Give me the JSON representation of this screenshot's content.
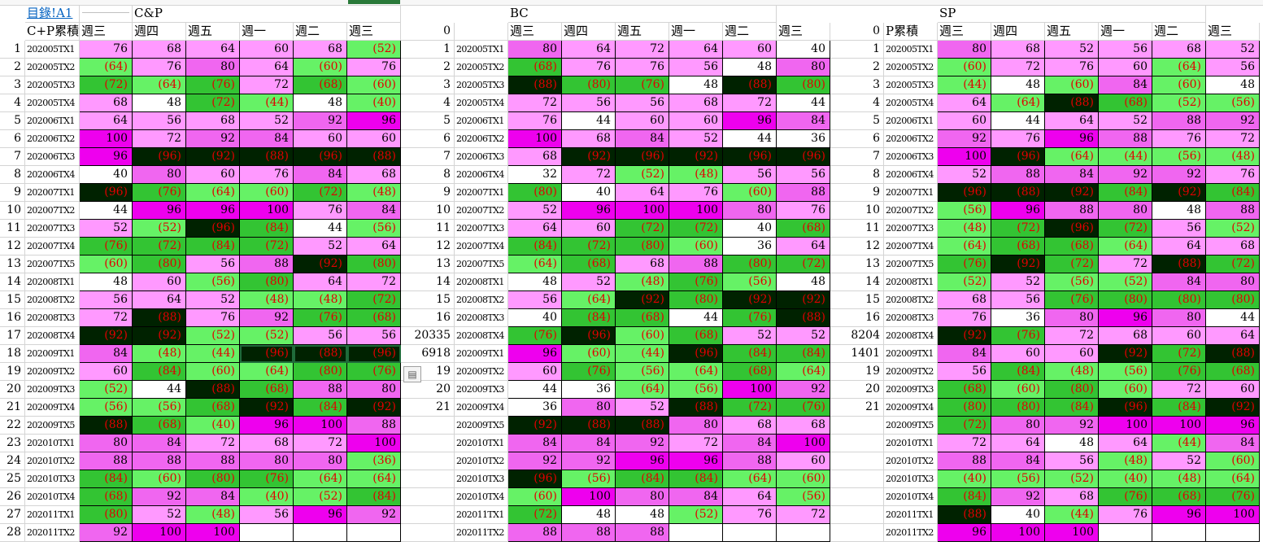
{
  "link_cell": "目錄!A1",
  "sections": [
    "C&P",
    "BC",
    "SP"
  ],
  "header_row": {
    "cp_label": "C+P累積",
    "bc_index": "0",
    "sp_index": "0",
    "sp_label": "P累積",
    "days_cp": [
      "週三",
      "週四",
      "週五",
      "週一",
      "週二",
      "週三"
    ],
    "days_bc": [
      "週三",
      "週四",
      "週五",
      "週一",
      "週二",
      "週三"
    ],
    "days_sp": [
      "週三",
      "週四",
      "週五",
      "週一",
      "週二",
      "週三"
    ]
  },
  "colors": {
    "green_light": "#66f266",
    "green_mid": "#33c433",
    "green_dark": "#002200",
    "pink_light": "#ff99ff",
    "pink_mid": "#f066f0",
    "magenta": "#ee00ee",
    "white": "#ffffff",
    "negative_text": "#e00000"
  },
  "rows": [
    {
      "n": "1",
      "cpl": "202005TX1",
      "cp": [
        "76",
        "68",
        "64",
        "60",
        "68",
        "(52)"
      ],
      "bi": "1",
      "bl": "202005TX1",
      "bc": [
        "80",
        "64",
        "72",
        "64",
        "60",
        "40"
      ],
      "si": "1",
      "sl": "202005TX1",
      "sp": [
        "80",
        "68",
        "52",
        "56",
        "68",
        "52"
      ]
    },
    {
      "n": "2",
      "cpl": "202005TX2",
      "cp": [
        "(64)",
        "76",
        "80",
        "64",
        "(60)",
        "76"
      ],
      "bi": "2",
      "bl": "202005TX2",
      "bc": [
        "(68)",
        "76",
        "76",
        "56",
        "48",
        "80"
      ],
      "si": "2",
      "sl": "202005TX2",
      "sp": [
        "(60)",
        "72",
        "76",
        "60",
        "(64)",
        "56"
      ]
    },
    {
      "n": "3",
      "cpl": "202005TX3",
      "cp": [
        "(72)",
        "(64)",
        "(76)",
        "72",
        "(68)",
        "(60)"
      ],
      "bi": "3",
      "bl": "202005TX3",
      "bc": [
        "(88)",
        "(80)",
        "(76)",
        "48",
        "(88)",
        "(80)"
      ],
      "si": "3",
      "sl": "202005TX3",
      "sp": [
        "(44)",
        "48",
        "(60)",
        "84",
        "(60)",
        "48"
      ]
    },
    {
      "n": "4",
      "cpl": "202005TX4",
      "cp": [
        "68",
        "48",
        "(72)",
        "(44)",
        "48",
        "(40)"
      ],
      "bi": "4",
      "bl": "202005TX4",
      "bc": [
        "72",
        "56",
        "56",
        "68",
        "72",
        "44"
      ],
      "si": "4",
      "sl": "202005TX4",
      "sp": [
        "64",
        "(64)",
        "(88)",
        "(68)",
        "(52)",
        "(56)"
      ]
    },
    {
      "n": "5",
      "cpl": "202006TX1",
      "cp": [
        "64",
        "56",
        "68",
        "52",
        "92",
        "96"
      ],
      "bi": "5",
      "bl": "202006TX1",
      "bc": [
        "76",
        "44",
        "60",
        "60",
        "96",
        "84"
      ],
      "si": "5",
      "sl": "202006TX1",
      "sp": [
        "60",
        "44",
        "64",
        "52",
        "88",
        "92"
      ]
    },
    {
      "n": "6",
      "cpl": "202006TX2",
      "cp": [
        "100",
        "72",
        "92",
        "84",
        "60",
        "60"
      ],
      "bi": "6",
      "bl": "202006TX2",
      "bc": [
        "100",
        "68",
        "84",
        "52",
        "44",
        "36"
      ],
      "si": "6",
      "sl": "202006TX2",
      "sp": [
        "92",
        "76",
        "96",
        "88",
        "76",
        "72"
      ]
    },
    {
      "n": "7",
      "cpl": "202006TX3",
      "cp": [
        "96",
        "(96)",
        "(92)",
        "(88)",
        "(96)",
        "(88)"
      ],
      "bi": "7",
      "bl": "202006TX3",
      "bc": [
        "68",
        "(92)",
        "(96)",
        "(92)",
        "(96)",
        "(96)"
      ],
      "si": "7",
      "sl": "202006TX3",
      "sp": [
        "100",
        "(96)",
        "(64)",
        "(44)",
        "(56)",
        "(48)"
      ]
    },
    {
      "n": "8",
      "cpl": "202006TX4",
      "cp": [
        "40",
        "80",
        "60",
        "76",
        "84",
        "68"
      ],
      "bi": "8",
      "bl": "202006TX4",
      "bc": [
        "32",
        "72",
        "(52)",
        "(48)",
        "56",
        "56"
      ],
      "si": "8",
      "sl": "202006TX4",
      "sp": [
        "52",
        "88",
        "84",
        "92",
        "92",
        "76"
      ]
    },
    {
      "n": "9",
      "cpl": "202007TX1",
      "cp": [
        "(96)",
        "(76)",
        "(64)",
        "(60)",
        "(72)",
        "(48)"
      ],
      "bi": "9",
      "bl": "202007TX1",
      "bc": [
        "(80)",
        "40",
        "64",
        "76",
        "(60)",
        "88"
      ],
      "si": "9",
      "sl": "202007TX1",
      "sp": [
        "(96)",
        "(88)",
        "(92)",
        "(84)",
        "(92)",
        "(84)"
      ]
    },
    {
      "n": "10",
      "cpl": "202007TX2",
      "cp": [
        "44",
        "96",
        "96",
        "100",
        "76",
        "84"
      ],
      "bi": "10",
      "bl": "202007TX2",
      "bc": [
        "52",
        "96",
        "100",
        "100",
        "80",
        "76"
      ],
      "si": "10",
      "sl": "202007TX2",
      "sp": [
        "(56)",
        "96",
        "88",
        "80",
        "48",
        "88"
      ]
    },
    {
      "n": "11",
      "cpl": "202007TX3",
      "cp": [
        "52",
        "(52)",
        "(96)",
        "(84)",
        "44",
        "(56)"
      ],
      "bi": "11",
      "bl": "202007TX3",
      "bc": [
        "64",
        "60",
        "(72)",
        "(72)",
        "40",
        "(68)"
      ],
      "si": "11",
      "sl": "202007TX3",
      "sp": [
        "(48)",
        "(72)",
        "(96)",
        "(72)",
        "56",
        "(52)"
      ]
    },
    {
      "n": "12",
      "cpl": "202007TX4",
      "cp": [
        "(76)",
        "(72)",
        "(84)",
        "(72)",
        "52",
        "64"
      ],
      "bi": "12",
      "bl": "202007TX4",
      "bc": [
        "(84)",
        "(72)",
        "(80)",
        "(60)",
        "36",
        "64"
      ],
      "si": "12",
      "sl": "202007TX4",
      "sp": [
        "(64)",
        "(68)",
        "(68)",
        "(64)",
        "64",
        "68"
      ]
    },
    {
      "n": "13",
      "cpl": "202007TX5",
      "cp": [
        "(60)",
        "(80)",
        "56",
        "88",
        "(92)",
        "(80)"
      ],
      "bi": "13",
      "bl": "202007TX5",
      "bc": [
        "(64)",
        "(68)",
        "68",
        "88",
        "(80)",
        "(72)"
      ],
      "si": "13",
      "sl": "202007TX5",
      "sp": [
        "(76)",
        "(92)",
        "(72)",
        "72",
        "(88)",
        "(72)"
      ]
    },
    {
      "n": "14",
      "cpl": "202008TX1",
      "cp": [
        "48",
        "60",
        "(56)",
        "(80)",
        "64",
        "72"
      ],
      "bi": "14",
      "bl": "202008TX1",
      "bc": [
        "48",
        "52",
        "(48)",
        "(76)",
        "(56)",
        "48"
      ],
      "si": "14",
      "sl": "202008TX1",
      "sp": [
        "(52)",
        "52",
        "(56)",
        "(52)",
        "84",
        "80"
      ]
    },
    {
      "n": "15",
      "cpl": "202008TX2",
      "cp": [
        "56",
        "64",
        "52",
        "(48)",
        "(48)",
        "(72)"
      ],
      "bi": "15",
      "bl": "202008TX2",
      "bc": [
        "56",
        "(64)",
        "(92)",
        "(80)",
        "(92)",
        "(92)"
      ],
      "si": "15",
      "sl": "202008TX2",
      "sp": [
        "68",
        "56",
        "(76)",
        "(80)",
        "(80)",
        "(80)"
      ]
    },
    {
      "n": "16",
      "cpl": "202008TX3",
      "cp": [
        "72",
        "(88)",
        "76",
        "92",
        "(76)",
        "(68)"
      ],
      "bi": "16",
      "bl": "202008TX3",
      "bc": [
        "40",
        "(84)",
        "(68)",
        "44",
        "(76)",
        "(88)"
      ],
      "si": "16",
      "sl": "202008TX3",
      "sp": [
        "76",
        "36",
        "80",
        "96",
        "80",
        "44"
      ]
    },
    {
      "n": "17",
      "cpl": "202008TX4",
      "cp": [
        "(92)",
        "(92)",
        "(52)",
        "(52)",
        "56",
        "56"
      ],
      "bi": "20335",
      "bl": "202008TX4",
      "bc": [
        "(76)",
        "(96)",
        "(60)",
        "(68)",
        "52",
        "52"
      ],
      "si": "8204",
      "sl": "202008TX4",
      "sp": [
        "(92)",
        "(76)",
        "72",
        "68",
        "60",
        "64"
      ]
    },
    {
      "n": "18",
      "cpl": "202009TX1",
      "cp": [
        "84",
        "(48)",
        "(44)",
        "(96)",
        "(88)",
        "(96)"
      ],
      "bi": "6918",
      "bl": "202009TX1",
      "bc": [
        "96",
        "(60)",
        "(44)",
        "(96)",
        "(84)",
        "(84)"
      ],
      "si": "1401",
      "sl": "202009TX1",
      "sp": [
        "84",
        "60",
        "60",
        "(92)",
        "(72)",
        "(88)"
      ]
    },
    {
      "n": "19",
      "cpl": "202009TX2",
      "cp": [
        "60",
        "(84)",
        "(60)",
        "(64)",
        "(80)",
        "(76)"
      ],
      "bi": "19",
      "bl": "202009TX2",
      "bc": [
        "60",
        "(76)",
        "(56)",
        "(64)",
        "(68)",
        "(64)"
      ],
      "si": "19",
      "sl": "202009TX2",
      "sp": [
        "56",
        "(84)",
        "(48)",
        "(56)",
        "(76)",
        "(68)"
      ]
    },
    {
      "n": "20",
      "cpl": "202009TX3",
      "cp": [
        "(52)",
        "44",
        "(88)",
        "(68)",
        "88",
        "80"
      ],
      "bi": "20",
      "bl": "202009TX3",
      "bc": [
        "44",
        "36",
        "(64)",
        "(56)",
        "100",
        "92"
      ],
      "si": "20",
      "sl": "202009TX3",
      "sp": [
        "(68)",
        "(60)",
        "(80)",
        "(60)",
        "72",
        "60"
      ]
    },
    {
      "n": "21",
      "cpl": "202009TX4",
      "cp": [
        "(56)",
        "(56)",
        "(68)",
        "(92)",
        "(84)",
        "(92)"
      ],
      "bi": "21",
      "bl": "202009TX4",
      "bc": [
        "36",
        "80",
        "52",
        "(88)",
        "(72)",
        "(76)"
      ],
      "si": "21",
      "sl": "202009TX4",
      "sp": [
        "(80)",
        "(80)",
        "(84)",
        "(96)",
        "(84)",
        "(92)"
      ]
    },
    {
      "n": "22",
      "cpl": "202009TX5",
      "cp": [
        "(88)",
        "(68)",
        "(40)",
        "96",
        "100",
        "88"
      ],
      "bi": "",
      "bl": "202009TX5",
      "bc": [
        "(92)",
        "(88)",
        "(88)",
        "80",
        "68",
        "68"
      ],
      "si": "",
      "sl": "202009TX5",
      "sp": [
        "(72)",
        "80",
        "92",
        "100",
        "100",
        "96"
      ]
    },
    {
      "n": "23",
      "cpl": "202010TX1",
      "cp": [
        "80",
        "84",
        "72",
        "68",
        "72",
        "100"
      ],
      "bi": "",
      "bl": "202010TX1",
      "bc": [
        "84",
        "84",
        "92",
        "72",
        "84",
        "100"
      ],
      "si": "",
      "sl": "202010TX1",
      "sp": [
        "72",
        "64",
        "48",
        "64",
        "(44)",
        "84"
      ]
    },
    {
      "n": "24",
      "cpl": "202010TX2",
      "cp": [
        "88",
        "88",
        "88",
        "80",
        "80",
        "(36)"
      ],
      "bi": "",
      "bl": "202010TX2",
      "bc": [
        "92",
        "92",
        "96",
        "96",
        "88",
        "60"
      ],
      "si": "",
      "sl": "202010TX2",
      "sp": [
        "88",
        "84",
        "56",
        "(48)",
        "52",
        "(60)"
      ]
    },
    {
      "n": "25",
      "cpl": "202010TX3",
      "cp": [
        "(84)",
        "(60)",
        "(80)",
        "(76)",
        "(64)",
        "(64)"
      ],
      "bi": "",
      "bl": "202010TX3",
      "bc": [
        "(96)",
        "(56)",
        "(84)",
        "(84)",
        "(64)",
        "(60)"
      ],
      "si": "",
      "sl": "202010TX3",
      "sp": [
        "(40)",
        "(56)",
        "(52)",
        "(40)",
        "(48)",
        "(64)"
      ]
    },
    {
      "n": "26",
      "cpl": "202010TX4",
      "cp": [
        "(68)",
        "92",
        "84",
        "(40)",
        "(52)",
        "(84)"
      ],
      "bi": "",
      "bl": "202010TX4",
      "bc": [
        "(60)",
        "100",
        "80",
        "84",
        "64",
        "(56)"
      ],
      "si": "",
      "sl": "202010TX4",
      "sp": [
        "(84)",
        "92",
        "68",
        "(76)",
        "(68)",
        "(76)"
      ]
    },
    {
      "n": "27",
      "cpl": "202011TX1",
      "cp": [
        "(80)",
        "52",
        "(48)",
        "56",
        "96",
        "92"
      ],
      "bi": "",
      "bl": "202011TX1",
      "bc": [
        "(72)",
        "48",
        "48",
        "(52)",
        "76",
        "72"
      ],
      "si": "",
      "sl": "202011TX1",
      "sp": [
        "(88)",
        "40",
        "(44)",
        "76",
        "96",
        "100"
      ]
    },
    {
      "n": "28",
      "cpl": "202011TX2",
      "cp": [
        "92",
        "100",
        "100",
        "",
        "",
        ""
      ],
      "bi": "",
      "bl": "202011TX2",
      "bc": [
        "88",
        "88",
        "88",
        "",
        "",
        ""
      ],
      "si": "",
      "sl": "202011TX2",
      "sp": [
        "96",
        "100",
        "100",
        "",
        "",
        ""
      ]
    }
  ]
}
